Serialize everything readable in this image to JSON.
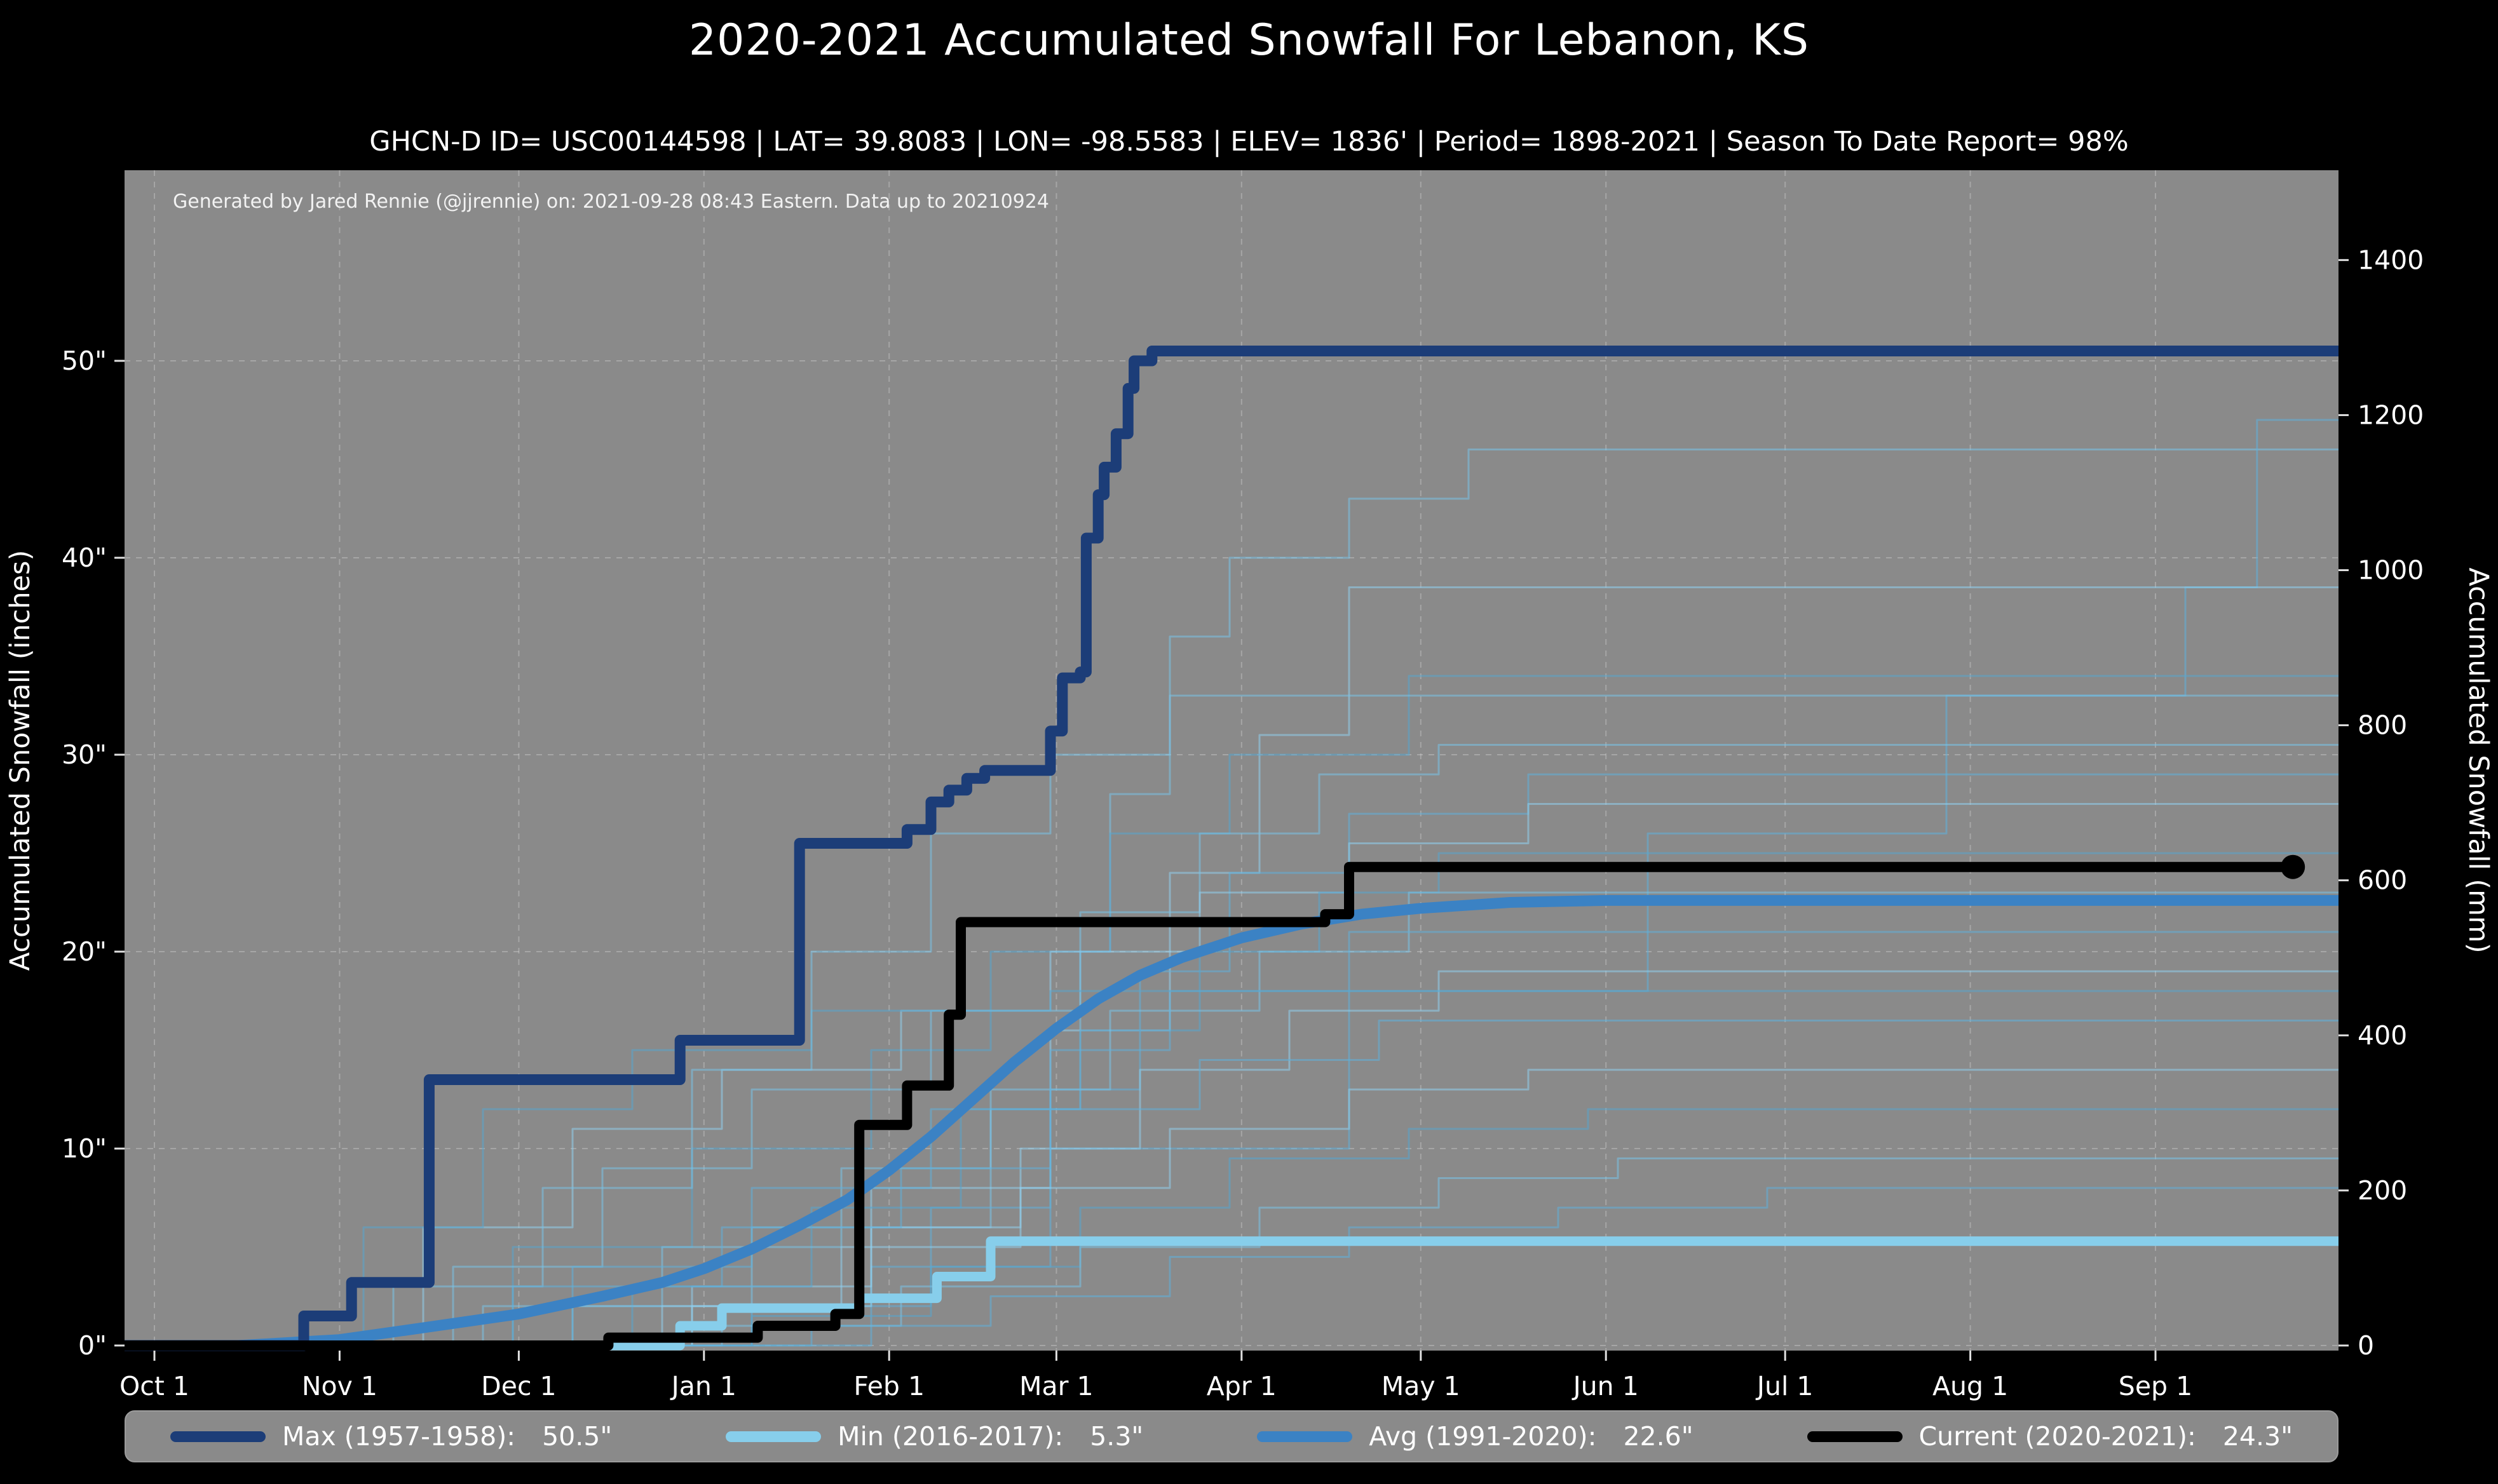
{
  "title": "2020-2021 Accumulated Snowfall For Lebanon, KS",
  "subtitle": "GHCN-D ID= USC00144598 | LAT= 39.8083 | LON= -98.5583 | ELEV= 1836' | Period= 1898-2021 | Season To Date Report= 98%",
  "annotation": "Generated by Jared Rennie (@jjrennie) on: 2021-09-28 08:43 Eastern. Data up to 20210924",
  "colors": {
    "page_bg": "#000000",
    "plot_bg": "#8a8a8a",
    "grid": "#d2d2d2",
    "text": "#ffffff",
    "max_line": "#1c3d78",
    "min_line": "#87ceeb",
    "avg_line": "#3b82c4",
    "current_line": "#000000"
  },
  "axes": {
    "left_label": "Accumulated Snowfall (inches)",
    "right_label": "Accumulated Snowfall (mm)",
    "x_ticks": [
      {
        "day": 0,
        "label": "Oct 1"
      },
      {
        "day": 31,
        "label": "Nov 1"
      },
      {
        "day": 61,
        "label": "Dec 1"
      },
      {
        "day": 92,
        "label": "Jan 1"
      },
      {
        "day": 123,
        "label": "Feb 1"
      },
      {
        "day": 151,
        "label": "Mar 1"
      },
      {
        "day": 182,
        "label": "Apr 1"
      },
      {
        "day": 212,
        "label": "May 1"
      },
      {
        "day": 243,
        "label": "Jun 1"
      },
      {
        "day": 273,
        "label": "Jul 1"
      },
      {
        "day": 304,
        "label": "Aug 1"
      },
      {
        "day": 335,
        "label": "Sep 1"
      }
    ],
    "left_ticks": [
      {
        "value": 0,
        "label": "0\""
      },
      {
        "value": 10,
        "label": "10\""
      },
      {
        "value": 20,
        "label": "20\""
      },
      {
        "value": 30,
        "label": "30\""
      },
      {
        "value": 40,
        "label": "40\""
      },
      {
        "value": 50,
        "label": "50\""
      }
    ],
    "right_ticks_mm": [
      0,
      200,
      400,
      600,
      800,
      1000,
      1200,
      1400
    ]
  },
  "legend": [
    {
      "label": "Max (1957-1958):",
      "value": "50.5\"",
      "color": "#1c3d78"
    },
    {
      "label": "Min (2016-2017):",
      "value": "5.3\"",
      "color": "#87ceeb"
    },
    {
      "label": "Avg (1991-2020):",
      "value": "22.6\"",
      "color": "#3b82c4"
    },
    {
      "label": "Current (2020-2021):",
      "value": "24.3\"",
      "color": "#000000"
    }
  ],
  "chart_data": {
    "type": "line",
    "x_unit": "days_since_oct1",
    "xlim_days": [
      0,
      364
    ],
    "ylim_inches": [
      0,
      59.7
    ],
    "mm_per_inch": 25.4,
    "grid": true,
    "legend_position": "bottom",
    "series": [
      {
        "name": "Min (2016-2017)",
        "final": 5.3,
        "color": "#87ceeb",
        "width": 15,
        "step": true,
        "to_edge": true,
        "points": [
          [
            0,
            0
          ],
          [
            88,
            1.0
          ],
          [
            95,
            1.9
          ],
          [
            118,
            2.4
          ],
          [
            131,
            3.5
          ],
          [
            140,
            5.3
          ],
          [
            364,
            5.3
          ]
        ]
      },
      {
        "name": "Avg (1991-2020)",
        "final": 22.6,
        "color": "#3b82c4",
        "width": 17,
        "step": false,
        "to_edge": true,
        "points": [
          [
            14,
            0
          ],
          [
            31,
            0.3
          ],
          [
            45,
            0.9
          ],
          [
            61,
            1.6
          ],
          [
            75,
            2.5
          ],
          [
            85,
            3.2
          ],
          [
            92,
            3.9
          ],
          [
            100,
            4.9
          ],
          [
            108,
            6.1
          ],
          [
            116,
            7.4
          ],
          [
            123,
            8.9
          ],
          [
            130,
            10.6
          ],
          [
            137,
            12.5
          ],
          [
            144,
            14.4
          ],
          [
            151,
            16.1
          ],
          [
            158,
            17.6
          ],
          [
            165,
            18.8
          ],
          [
            172,
            19.7
          ],
          [
            182,
            20.7
          ],
          [
            192,
            21.4
          ],
          [
            202,
            21.9
          ],
          [
            212,
            22.2
          ],
          [
            227,
            22.5
          ],
          [
            243,
            22.6
          ],
          [
            364,
            22.6
          ]
        ]
      },
      {
        "name": "Max (1957-1958)",
        "final": 50.5,
        "color": "#1c3d78",
        "width": 17,
        "step": true,
        "to_edge": true,
        "points": [
          [
            0,
            0
          ],
          [
            25,
            1.5
          ],
          [
            33,
            3.2
          ],
          [
            46,
            13.5
          ],
          [
            88,
            15.5
          ],
          [
            108,
            25.5
          ],
          [
            126,
            26.2
          ],
          [
            130,
            27.6
          ],
          [
            133,
            28.2
          ],
          [
            136,
            28.8
          ],
          [
            139,
            29.2
          ],
          [
            150,
            31.2
          ],
          [
            152,
            33.9
          ],
          [
            155,
            34.2
          ],
          [
            156,
            41.0
          ],
          [
            158,
            43.2
          ],
          [
            159,
            44.6
          ],
          [
            161,
            46.3
          ],
          [
            163,
            48.6
          ],
          [
            164,
            50.0
          ],
          [
            167,
            50.5
          ],
          [
            364,
            50.5
          ]
        ]
      },
      {
        "name": "Current (2020-2021)",
        "final": 24.3,
        "color": "#000000",
        "width": 16,
        "step": true,
        "to_edge": false,
        "points": [
          [
            0,
            0
          ],
          [
            76,
            0.4
          ],
          [
            101,
            1.0
          ],
          [
            114,
            1.6
          ],
          [
            118,
            11.2
          ],
          [
            126,
            13.2
          ],
          [
            133,
            16.8
          ],
          [
            135,
            21.5
          ],
          [
            196,
            21.9
          ],
          [
            200,
            24.3
          ],
          [
            358,
            24.3
          ]
        ]
      }
    ],
    "endpoint_marker": {
      "series": "Current (2020-2021)",
      "day": 358,
      "value": 24.3,
      "color": "#000000",
      "radius": 19
    },
    "background_palette": [
      "#79c2e8",
      "#5fb0dc",
      "#8fd0ee",
      "#55a5cf"
    ],
    "background_series": [
      {
        "points": [
          [
            0,
            0
          ],
          [
            70,
            2
          ],
          [
            100,
            6
          ],
          [
            140,
            12
          ],
          [
            155,
            20
          ],
          [
            160,
            28
          ],
          [
            170,
            36
          ],
          [
            180,
            40
          ],
          [
            200,
            43
          ],
          [
            220,
            45.5
          ],
          [
            364,
            45.5
          ]
        ]
      },
      {
        "points": [
          [
            0,
            0
          ],
          [
            120,
            4
          ],
          [
            150,
            10
          ],
          [
            200,
            18
          ],
          [
            250,
            26
          ],
          [
            300,
            33
          ],
          [
            340,
            38.5
          ],
          [
            352,
            47
          ],
          [
            364,
            47
          ]
        ]
      },
      {
        "points": [
          [
            0,
            0
          ],
          [
            90,
            3
          ],
          [
            120,
            8
          ],
          [
            150,
            16
          ],
          [
            170,
            24
          ],
          [
            185,
            31
          ],
          [
            200,
            38.5
          ],
          [
            364,
            38.5
          ]
        ]
      },
      {
        "points": [
          [
            0,
            0
          ],
          [
            60,
            5
          ],
          [
            90,
            10
          ],
          [
            120,
            15
          ],
          [
            140,
            20
          ],
          [
            160,
            26
          ],
          [
            180,
            30
          ],
          [
            210,
            34
          ],
          [
            364,
            34
          ]
        ]
      },
      {
        "points": [
          [
            0,
            0
          ],
          [
            50,
            4
          ],
          [
            75,
            9
          ],
          [
            100,
            13
          ],
          [
            130,
            17
          ],
          [
            155,
            22
          ],
          [
            175,
            26
          ],
          [
            195,
            29
          ],
          [
            215,
            30.5
          ],
          [
            364,
            30.5
          ]
        ]
      },
      {
        "points": [
          [
            0,
            0
          ],
          [
            100,
            2
          ],
          [
            130,
            7
          ],
          [
            150,
            13
          ],
          [
            165,
            19
          ],
          [
            180,
            24
          ],
          [
            200,
            27
          ],
          [
            230,
            29
          ],
          [
            364,
            29
          ]
        ]
      },
      {
        "points": [
          [
            0,
            0
          ],
          [
            45,
            6
          ],
          [
            70,
            11
          ],
          [
            95,
            14
          ],
          [
            125,
            17
          ],
          [
            150,
            20
          ],
          [
            175,
            23
          ],
          [
            200,
            25.5
          ],
          [
            230,
            27.5
          ],
          [
            364,
            27.5
          ]
        ]
      },
      {
        "points": [
          [
            0,
            0
          ],
          [
            80,
            3
          ],
          [
            110,
            7
          ],
          [
            135,
            12
          ],
          [
            155,
            16
          ],
          [
            175,
            20
          ],
          [
            195,
            23
          ],
          [
            215,
            25
          ],
          [
            364,
            25
          ]
        ]
      },
      {
        "points": [
          [
            0,
            0
          ],
          [
            55,
            2
          ],
          [
            85,
            5
          ],
          [
            115,
            9
          ],
          [
            140,
            13
          ],
          [
            160,
            17
          ],
          [
            185,
            20
          ],
          [
            210,
            23
          ],
          [
            364,
            23
          ]
        ]
      },
      {
        "points": [
          [
            0,
            0
          ],
          [
            70,
            4
          ],
          [
            100,
            8
          ],
          [
            130,
            12
          ],
          [
            150,
            15
          ],
          [
            170,
            18
          ],
          [
            200,
            21
          ],
          [
            364,
            21
          ]
        ]
      },
      {
        "points": [
          [
            0,
            0
          ],
          [
            90,
            2
          ],
          [
            120,
            6
          ],
          [
            145,
            10
          ],
          [
            165,
            14
          ],
          [
            190,
            17
          ],
          [
            215,
            19
          ],
          [
            364,
            19
          ]
        ]
      },
      {
        "points": [
          [
            0,
            0
          ],
          [
            35,
            6
          ],
          [
            55,
            12
          ],
          [
            80,
            15
          ],
          [
            110,
            17
          ],
          [
            150,
            18
          ],
          [
            364,
            18
          ]
        ]
      },
      {
        "points": [
          [
            0,
            0
          ],
          [
            40,
            3
          ],
          [
            65,
            8
          ],
          [
            90,
            14
          ],
          [
            110,
            20
          ],
          [
            130,
            26
          ],
          [
            150,
            30
          ],
          [
            170,
            33
          ],
          [
            364,
            33
          ]
        ]
      },
      {
        "points": [
          [
            0,
            0
          ],
          [
            60,
            3
          ],
          [
            95,
            6
          ],
          [
            125,
            9
          ],
          [
            150,
            12
          ],
          [
            175,
            14.5
          ],
          [
            205,
            16.5
          ],
          [
            364,
            16.5
          ]
        ]
      },
      {
        "points": [
          [
            0,
            0
          ],
          [
            85,
            2
          ],
          [
            115,
            5
          ],
          [
            145,
            8
          ],
          [
            170,
            11
          ],
          [
            200,
            13
          ],
          [
            230,
            14
          ],
          [
            364,
            14
          ]
        ]
      },
      {
        "points": [
          [
            0,
            0
          ],
          [
            100,
            1.5
          ],
          [
            130,
            4
          ],
          [
            155,
            7
          ],
          [
            180,
            9.5
          ],
          [
            210,
            11
          ],
          [
            240,
            12
          ],
          [
            364,
            12
          ]
        ]
      },
      {
        "points": [
          [
            0,
            0
          ],
          [
            95,
            1
          ],
          [
            125,
            3
          ],
          [
            155,
            5
          ],
          [
            185,
            7
          ],
          [
            215,
            8.5
          ],
          [
            245,
            9.5
          ],
          [
            364,
            9.5
          ]
        ]
      },
      {
        "points": [
          [
            0,
            0
          ],
          [
            110,
            1
          ],
          [
            140,
            2.5
          ],
          [
            170,
            4.5
          ],
          [
            200,
            6
          ],
          [
            235,
            7
          ],
          [
            270,
            8
          ],
          [
            364,
            8
          ]
        ]
      }
    ]
  }
}
